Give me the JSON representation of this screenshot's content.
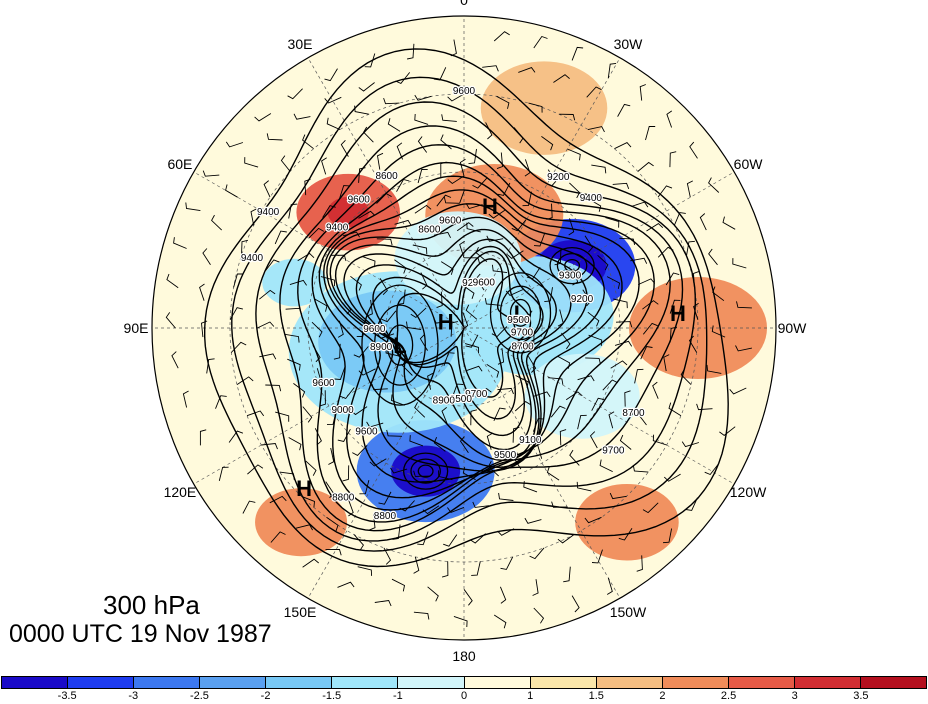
{
  "title": {
    "level": "300 hPa",
    "time": "0000 UTC 19 Nov 1987"
  },
  "longitude_labels": [
    {
      "text": "0",
      "lon": 0
    },
    {
      "text": "30W",
      "lon": -30
    },
    {
      "text": "60W",
      "lon": -60
    },
    {
      "text": "90W",
      "lon": -90
    },
    {
      "text": "120W",
      "lon": -120
    },
    {
      "text": "150W",
      "lon": -150
    },
    {
      "text": "180",
      "lon": 180
    },
    {
      "text": "150E",
      "lon": 150
    },
    {
      "text": "120E",
      "lon": 120
    },
    {
      "text": "90E",
      "lon": 90
    },
    {
      "text": "60E",
      "lon": 60
    },
    {
      "text": "30E",
      "lon": 30
    }
  ],
  "pressure_centers": [
    {
      "text": "H",
      "lon": -12,
      "lat": 58
    },
    {
      "text": "H",
      "lon": -86,
      "lat": 35
    },
    {
      "text": "H",
      "lon": 135,
      "lat": 32
    },
    {
      "text": "H",
      "lon": 70,
      "lat": 85
    },
    {
      "text": "L",
      "lon": 105,
      "lat": 73
    },
    {
      "text": "L",
      "lon": -75,
      "lat": 75
    }
  ],
  "contour_labels": [
    {
      "text": "9600"
    },
    {
      "text": "9600"
    },
    {
      "text": "9500"
    },
    {
      "text": "9400"
    },
    {
      "text": "9700"
    },
    {
      "text": "9200"
    },
    {
      "text": "8900"
    },
    {
      "text": "8700"
    },
    {
      "text": "8600"
    },
    {
      "text": "8800"
    },
    {
      "text": "9300"
    },
    {
      "text": "9400"
    },
    {
      "text": "9100"
    },
    {
      "text": "9200"
    },
    {
      "text": "9000"
    },
    {
      "text": "9700"
    },
    {
      "text": "9600"
    },
    {
      "text": "9500"
    },
    {
      "text": "9400"
    },
    {
      "text": "9600"
    },
    {
      "text": "9700"
    },
    {
      "text": "9600"
    },
    {
      "text": "8800"
    },
    {
      "text": "9200"
    },
    {
      "text": "9400"
    },
    {
      "text": "9500"
    },
    {
      "text": "9600"
    },
    {
      "text": "9600"
    },
    {
      "text": "8700"
    },
    {
      "text": "8600"
    },
    {
      "text": "8900"
    }
  ],
  "colorbar": {
    "colors": [
      "#1a0ac8",
      "#1e3cf0",
      "#3c78f0",
      "#5aa0f0",
      "#78c8f5",
      "#a0e6fa",
      "#d2f5fa",
      "#fffadc",
      "#fae6aa",
      "#f5be82",
      "#f08c5a",
      "#e65a46",
      "#d22d32",
      "#b40f1e"
    ],
    "labels": [
      "-3.5",
      "-3",
      "-2.5",
      "-2",
      "-1.5",
      "-1",
      "0",
      "1",
      "1.5",
      "2",
      "2.5",
      "3",
      "3.5"
    ]
  },
  "anomaly_blobs": [
    {
      "lon": -60,
      "lat": 58,
      "r": 55,
      "value": -3.5
    },
    {
      "lon": -60,
      "lat": 58,
      "r": 30,
      "value": -4
    },
    {
      "lon": 165,
      "lat": 52,
      "r": 60,
      "value": -3
    },
    {
      "lon": 165,
      "lat": 52,
      "r": 30,
      "value": -4
    },
    {
      "lon": 110,
      "lat": 72,
      "r": 95,
      "value": -1.5
    },
    {
      "lon": 100,
      "lat": 70,
      "r": 60,
      "value": -2
    },
    {
      "lon": -80,
      "lat": 72,
      "r": 70,
      "value": -1.5
    },
    {
      "lon": 75,
      "lat": 45,
      "r": 28,
      "value": -1.5
    },
    {
      "lon": 45,
      "lat": 48,
      "r": 45,
      "value": 2.5
    },
    {
      "lon": 45,
      "lat": 48,
      "r": 18,
      "value": 3
    },
    {
      "lon": -15,
      "lat": 60,
      "r": 60,
      "value": 2
    },
    {
      "lon": -90,
      "lat": 30,
      "r": 60,
      "value": 2
    },
    {
      "lon": -140,
      "lat": 25,
      "r": 45,
      "value": 2
    },
    {
      "lon": -20,
      "lat": 30,
      "r": 55,
      "value": 1.5
    },
    {
      "lon": 140,
      "lat": 25,
      "r": 40,
      "value": 2
    },
    {
      "lon": 5,
      "lat": 72,
      "r": 55,
      "value": -1
    },
    {
      "lon": -120,
      "lat": 55,
      "r": 50,
      "value": -1
    }
  ]
}
